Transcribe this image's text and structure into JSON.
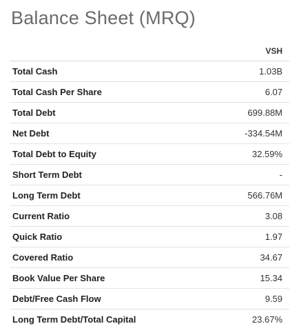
{
  "title": "Balance Sheet (MRQ)",
  "table": {
    "columns": [
      "",
      "VSH"
    ],
    "rows": [
      {
        "label": "Total Cash",
        "value": "1.03B"
      },
      {
        "label": "Total Cash Per Share",
        "value": "6.07"
      },
      {
        "label": "Total Debt",
        "value": "699.88M"
      },
      {
        "label": "Net Debt",
        "value": "-334.54M"
      },
      {
        "label": "Total Debt to Equity",
        "value": "32.59%"
      },
      {
        "label": "Short Term Debt",
        "value": "-"
      },
      {
        "label": "Long Term Debt",
        "value": "566.76M"
      },
      {
        "label": "Current Ratio",
        "value": "3.08"
      },
      {
        "label": "Quick Ratio",
        "value": "1.97"
      },
      {
        "label": "Covered Ratio",
        "value": "34.67"
      },
      {
        "label": "Book Value Per Share",
        "value": "15.34"
      },
      {
        "label": "Debt/Free Cash Flow",
        "value": "9.59"
      },
      {
        "label": "Long Term Debt/Total Capital",
        "value": "23.67%"
      }
    ]
  }
}
